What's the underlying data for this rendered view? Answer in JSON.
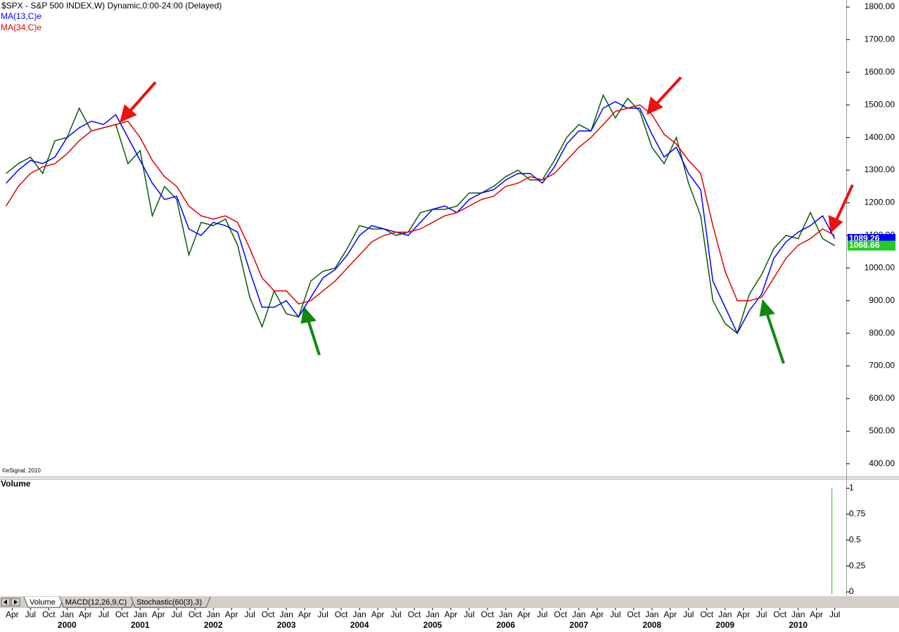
{
  "chart_data": {
    "type": "line",
    "title": "$SPX - S&P 500 INDEX,W) Dynamic,0:00-24:00 (Delayed)",
    "copyright": "©eSignal, 2010",
    "price_color": "#0a5a0a",
    "x": [
      "1999-03",
      "1999-05",
      "1999-07",
      "1999-09",
      "1999-11",
      "2000-01",
      "2000-03",
      "2000-05",
      "2000-07",
      "2000-09",
      "2000-11",
      "2001-01",
      "2001-03",
      "2001-05",
      "2001-07",
      "2001-09",
      "2001-11",
      "2002-01",
      "2002-03",
      "2002-05",
      "2002-07",
      "2002-09",
      "2002-11",
      "2003-01",
      "2003-03",
      "2003-05",
      "2003-07",
      "2003-09",
      "2003-11",
      "2004-01",
      "2004-03",
      "2004-05",
      "2004-07",
      "2004-09",
      "2004-11",
      "2005-01",
      "2005-03",
      "2005-05",
      "2005-07",
      "2005-09",
      "2005-11",
      "2006-01",
      "2006-03",
      "2006-05",
      "2006-07",
      "2006-09",
      "2006-11",
      "2007-01",
      "2007-03",
      "2007-05",
      "2007-07",
      "2007-09",
      "2007-11",
      "2008-01",
      "2008-03",
      "2008-05",
      "2008-07",
      "2008-09",
      "2008-11",
      "2009-01",
      "2009-03",
      "2009-05",
      "2009-07",
      "2009-09",
      "2009-11",
      "2010-01",
      "2010-03",
      "2010-05",
      "2010-07"
    ],
    "values": [
      1290,
      1320,
      1340,
      1290,
      1390,
      1400,
      1490,
      1420,
      1430,
      1440,
      1320,
      1360,
      1160,
      1250,
      1210,
      1040,
      1140,
      1130,
      1150,
      1070,
      910,
      820,
      930,
      860,
      850,
      960,
      990,
      1000,
      1060,
      1130,
      1120,
      1120,
      1100,
      1110,
      1170,
      1180,
      1180,
      1190,
      1230,
      1230,
      1250,
      1280,
      1300,
      1270,
      1270,
      1330,
      1400,
      1440,
      1420,
      1530,
      1460,
      1520,
      1480,
      1370,
      1320,
      1400,
      1260,
      1160,
      900,
      830,
      800,
      920,
      980,
      1060,
      1100,
      1090,
      1170,
      1090,
      1069
    ],
    "series": [
      {
        "name": "MA(13,C)e",
        "color": "#0000ff",
        "values": [
          1260,
          1300,
          1330,
          1320,
          1340,
          1400,
          1430,
          1450,
          1440,
          1470,
          1400,
          1330,
          1260,
          1210,
          1220,
          1120,
          1100,
          1140,
          1130,
          1110,
          990,
          880,
          880,
          900,
          850,
          910,
          970,
          995,
          1040,
          1100,
          1130,
          1120,
          1110,
          1100,
          1140,
          1180,
          1190,
          1170,
          1210,
          1230,
          1240,
          1270,
          1290,
          1290,
          1260,
          1310,
          1380,
          1420,
          1420,
          1490,
          1510,
          1490,
          1490,
          1410,
          1340,
          1370,
          1290,
          1240,
          960,
          880,
          800,
          870,
          920,
          1030,
          1080,
          1110,
          1130,
          1160,
          1090
        ]
      },
      {
        "name": "MA(34,C)e",
        "color": "#e00000",
        "values": [
          1190,
          1250,
          1290,
          1310,
          1320,
          1350,
          1390,
          1420,
          1430,
          1440,
          1450,
          1400,
          1330,
          1280,
          1250,
          1190,
          1160,
          1150,
          1160,
          1140,
          1060,
          970,
          930,
          930,
          890,
          900,
          930,
          960,
          1000,
          1040,
          1080,
          1100,
          1110,
          1110,
          1120,
          1140,
          1160,
          1170,
          1190,
          1210,
          1220,
          1250,
          1260,
          1280,
          1270,
          1290,
          1330,
          1370,
          1400,
          1440,
          1480,
          1490,
          1500,
          1470,
          1410,
          1380,
          1330,
          1290,
          1130,
          990,
          900,
          900,
          910,
          970,
          1030,
          1070,
          1090,
          1120,
          1100
        ]
      }
    ],
    "last_values": [
      {
        "value": 1089.26,
        "color": "#0000ff"
      },
      {
        "value": 1068.66,
        "color": "#22cc22"
      }
    ],
    "xlim": [
      "1999-02",
      "2010-09"
    ],
    "ylim": [
      369.3,
      1821.5
    ],
    "yticks": [
      {
        "value": 1800,
        "label": "1800.00"
      },
      {
        "value": 1700,
        "label": "1700.00"
      },
      {
        "value": 1600,
        "label": "1600.00"
      },
      {
        "value": 1500,
        "label": "1500.00"
      },
      {
        "value": 1400,
        "label": "1400.00"
      },
      {
        "value": 1300,
        "label": "1300.00"
      },
      {
        "value": 1200,
        "label": "1200.00"
      },
      {
        "value": 1100,
        "label": "1100.00"
      },
      {
        "value": 1000,
        "label": "1000.00"
      },
      {
        "value": 900,
        "label": "900.00"
      },
      {
        "value": 800,
        "label": "800.00"
      },
      {
        "value": 700,
        "label": "700.00"
      },
      {
        "value": 600,
        "label": "600.00"
      },
      {
        "value": 500,
        "label": "500.00"
      },
      {
        "value": 400,
        "label": "400.00"
      }
    ],
    "xticks": [
      {
        "value": "1999-04",
        "label": "Apr"
      },
      {
        "value": "1999-07",
        "label": "Jul"
      },
      {
        "value": "1999-10",
        "label": "Oct"
      },
      {
        "value": "2000-01",
        "label": "Jan"
      },
      {
        "value": "2000-04",
        "label": "Apr"
      },
      {
        "value": "2000-07",
        "label": "Jul"
      },
      {
        "value": "2000-10",
        "label": "Oct"
      },
      {
        "value": "2001-01",
        "label": "Jan"
      },
      {
        "value": "2001-04",
        "label": "Apr"
      },
      {
        "value": "2001-07",
        "label": "Jul"
      },
      {
        "value": "2001-10",
        "label": "Oct"
      },
      {
        "value": "2002-01",
        "label": "Jan"
      },
      {
        "value": "2002-04",
        "label": "Apr"
      },
      {
        "value": "2002-07",
        "label": "Jul"
      },
      {
        "value": "2002-10",
        "label": "Oct"
      },
      {
        "value": "2003-01",
        "label": "Jan"
      },
      {
        "value": "2003-04",
        "label": "Apr"
      },
      {
        "value": "2003-07",
        "label": "Jul"
      },
      {
        "value": "2003-10",
        "label": "Oct"
      },
      {
        "value": "2004-01",
        "label": "Jan"
      },
      {
        "value": "2004-04",
        "label": "Apr"
      },
      {
        "value": "2004-07",
        "label": "Jul"
      },
      {
        "value": "2004-10",
        "label": "Oct"
      },
      {
        "value": "2005-01",
        "label": "Jan"
      },
      {
        "value": "2005-04",
        "label": "Apr"
      },
      {
        "value": "2005-07",
        "label": "Jul"
      },
      {
        "value": "2005-10",
        "label": "Oct"
      },
      {
        "value": "2006-01",
        "label": "Jan"
      },
      {
        "value": "2006-04",
        "label": "Apr"
      },
      {
        "value": "2006-07",
        "label": "Jul"
      },
      {
        "value": "2006-10",
        "label": "Oct"
      },
      {
        "value": "2007-01",
        "label": "Jan"
      },
      {
        "value": "2007-04",
        "label": "Apr"
      },
      {
        "value": "2007-07",
        "label": "Jul"
      },
      {
        "value": "2007-10",
        "label": "Oct"
      },
      {
        "value": "2008-01",
        "label": "Jan"
      },
      {
        "value": "2008-04",
        "label": "Apr"
      },
      {
        "value": "2008-07",
        "label": "Jul"
      },
      {
        "value": "2008-10",
        "label": "Oct"
      },
      {
        "value": "2009-01",
        "label": "Jan"
      },
      {
        "value": "2009-04",
        "label": "Apr"
      },
      {
        "value": "2009-07",
        "label": "Jul"
      },
      {
        "value": "2009-10",
        "label": "Oct"
      },
      {
        "value": "2010-01",
        "label": "Jan"
      },
      {
        "value": "2010-04",
        "label": "Apr"
      },
      {
        "value": "2010-07",
        "label": "Jul"
      }
    ],
    "year_labels": [
      {
        "value": "2000-01",
        "label": "2000"
      },
      {
        "value": "2001-01",
        "label": "2001"
      },
      {
        "value": "2002-01",
        "label": "2002"
      },
      {
        "value": "2003-01",
        "label": "2003"
      },
      {
        "value": "2004-01",
        "label": "2004"
      },
      {
        "value": "2005-01",
        "label": "2005"
      },
      {
        "value": "2006-01",
        "label": "2006"
      },
      {
        "value": "2007-01",
        "label": "2007"
      },
      {
        "value": "2008-01",
        "label": "2008"
      },
      {
        "value": "2009-01",
        "label": "2009"
      },
      {
        "value": "2010-01",
        "label": "2010"
      }
    ],
    "volume_pane": {
      "title": "Volume",
      "color": "#22bb22",
      "x": [
        "2010-07"
      ],
      "values": [
        1
      ],
      "ylim": [
        0,
        1.03
      ],
      "yticks": [
        1,
        0.75,
        0.5,
        0.25,
        0
      ]
    },
    "tabs": [
      "Volume",
      "MACD(12,26,9,C)",
      "Stochastic(60(3),3)"
    ]
  }
}
